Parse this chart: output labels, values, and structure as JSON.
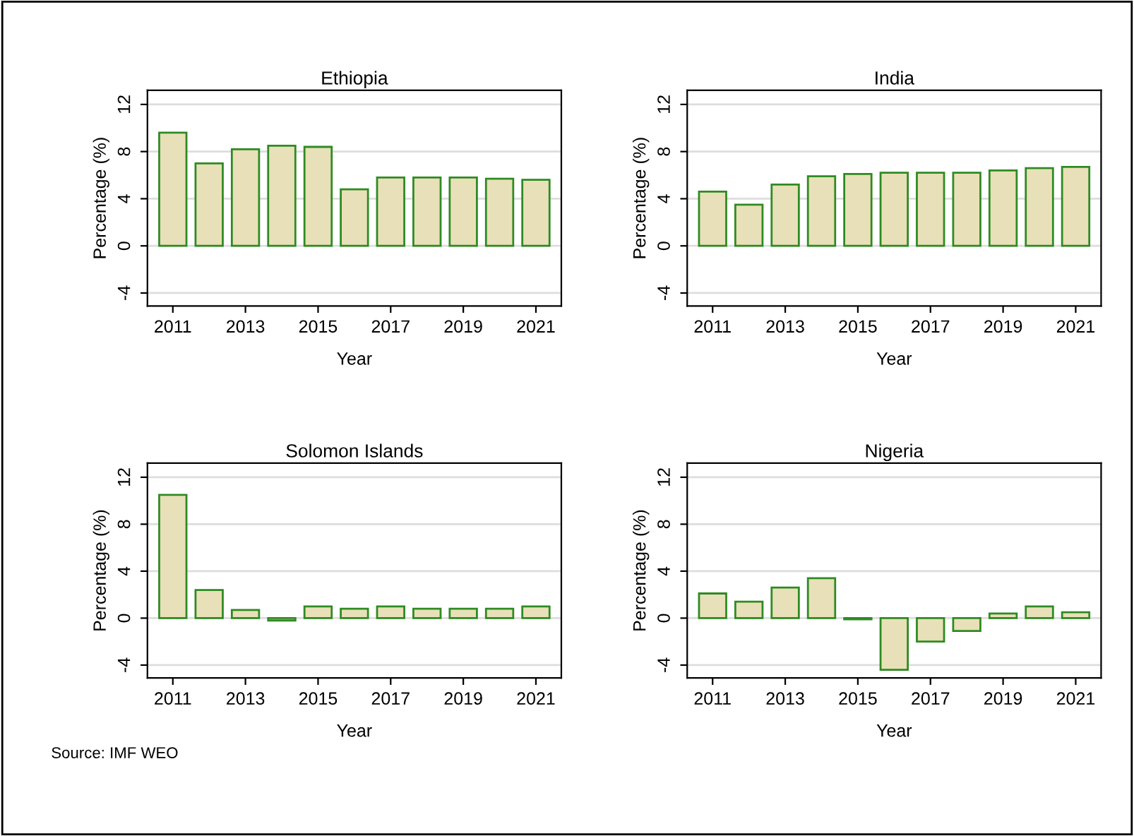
{
  "chart_data": [
    {
      "type": "bar",
      "title": "Ethiopia",
      "xlabel": "Year",
      "ylabel": "Percentage (%)",
      "x": [
        2011,
        2012,
        2013,
        2014,
        2015,
        2016,
        2017,
        2018,
        2019,
        2020,
        2021
      ],
      "values": [
        9.6,
        7.0,
        8.2,
        8.5,
        8.4,
        4.8,
        5.8,
        5.8,
        5.8,
        5.7,
        5.6
      ],
      "color": "#e8e0b8",
      "xlim": [
        2010.3,
        2021.7
      ],
      "xticks": [
        2011,
        2013,
        2015,
        2017,
        2019,
        2021
      ],
      "ylim": [
        -5.1,
        13.2
      ],
      "yticks": [
        -4,
        0,
        4,
        8,
        12
      ],
      "grid": "y"
    },
    {
      "type": "bar",
      "title": "India",
      "xlabel": "Year",
      "ylabel": "Percentage (%)",
      "x": [
        2011,
        2012,
        2013,
        2014,
        2015,
        2016,
        2017,
        2018,
        2019,
        2020,
        2021
      ],
      "values": [
        4.6,
        3.5,
        5.2,
        5.9,
        6.1,
        6.2,
        6.2,
        6.2,
        6.4,
        6.6,
        6.7
      ],
      "color": "#e8e0b8",
      "xlim": [
        2010.3,
        2021.7
      ],
      "xticks": [
        2011,
        2013,
        2015,
        2017,
        2019,
        2021
      ],
      "ylim": [
        -5.1,
        13.2
      ],
      "yticks": [
        -4,
        0,
        4,
        8,
        12
      ],
      "grid": "y"
    },
    {
      "type": "bar",
      "title": "Solomon Islands",
      "xlabel": "Year",
      "ylabel": "Percentage (%)",
      "x": [
        2011,
        2012,
        2013,
        2014,
        2015,
        2016,
        2017,
        2018,
        2019,
        2020,
        2021
      ],
      "values": [
        10.5,
        2.4,
        0.7,
        -0.2,
        1.0,
        0.8,
        1.0,
        0.8,
        0.8,
        0.8,
        1.0
      ],
      "color": "#e8e0b8",
      "xlim": [
        2010.3,
        2021.7
      ],
      "xticks": [
        2011,
        2013,
        2015,
        2017,
        2019,
        2021
      ],
      "ylim": [
        -5.1,
        13.2
      ],
      "yticks": [
        -4,
        0,
        4,
        8,
        12
      ],
      "grid": "y"
    },
    {
      "type": "bar",
      "title": "Nigeria",
      "xlabel": "Year",
      "ylabel": "Percentage (%)",
      "x": [
        2011,
        2012,
        2013,
        2014,
        2015,
        2016,
        2017,
        2018,
        2019,
        2020,
        2021
      ],
      "values": [
        2.1,
        1.4,
        2.6,
        3.4,
        -0.1,
        -4.4,
        -2.0,
        -1.1,
        0.4,
        1.0,
        0.5
      ],
      "color": "#e8e0b8",
      "xlim": [
        2010.3,
        2021.7
      ],
      "xticks": [
        2011,
        2013,
        2015,
        2017,
        2019,
        2021
      ],
      "ylim": [
        -5.1,
        13.2
      ],
      "yticks": [
        -4,
        0,
        4,
        8,
        12
      ],
      "grid": "y",
      "annotations": [
        "Source: IMF WEO"
      ]
    }
  ]
}
